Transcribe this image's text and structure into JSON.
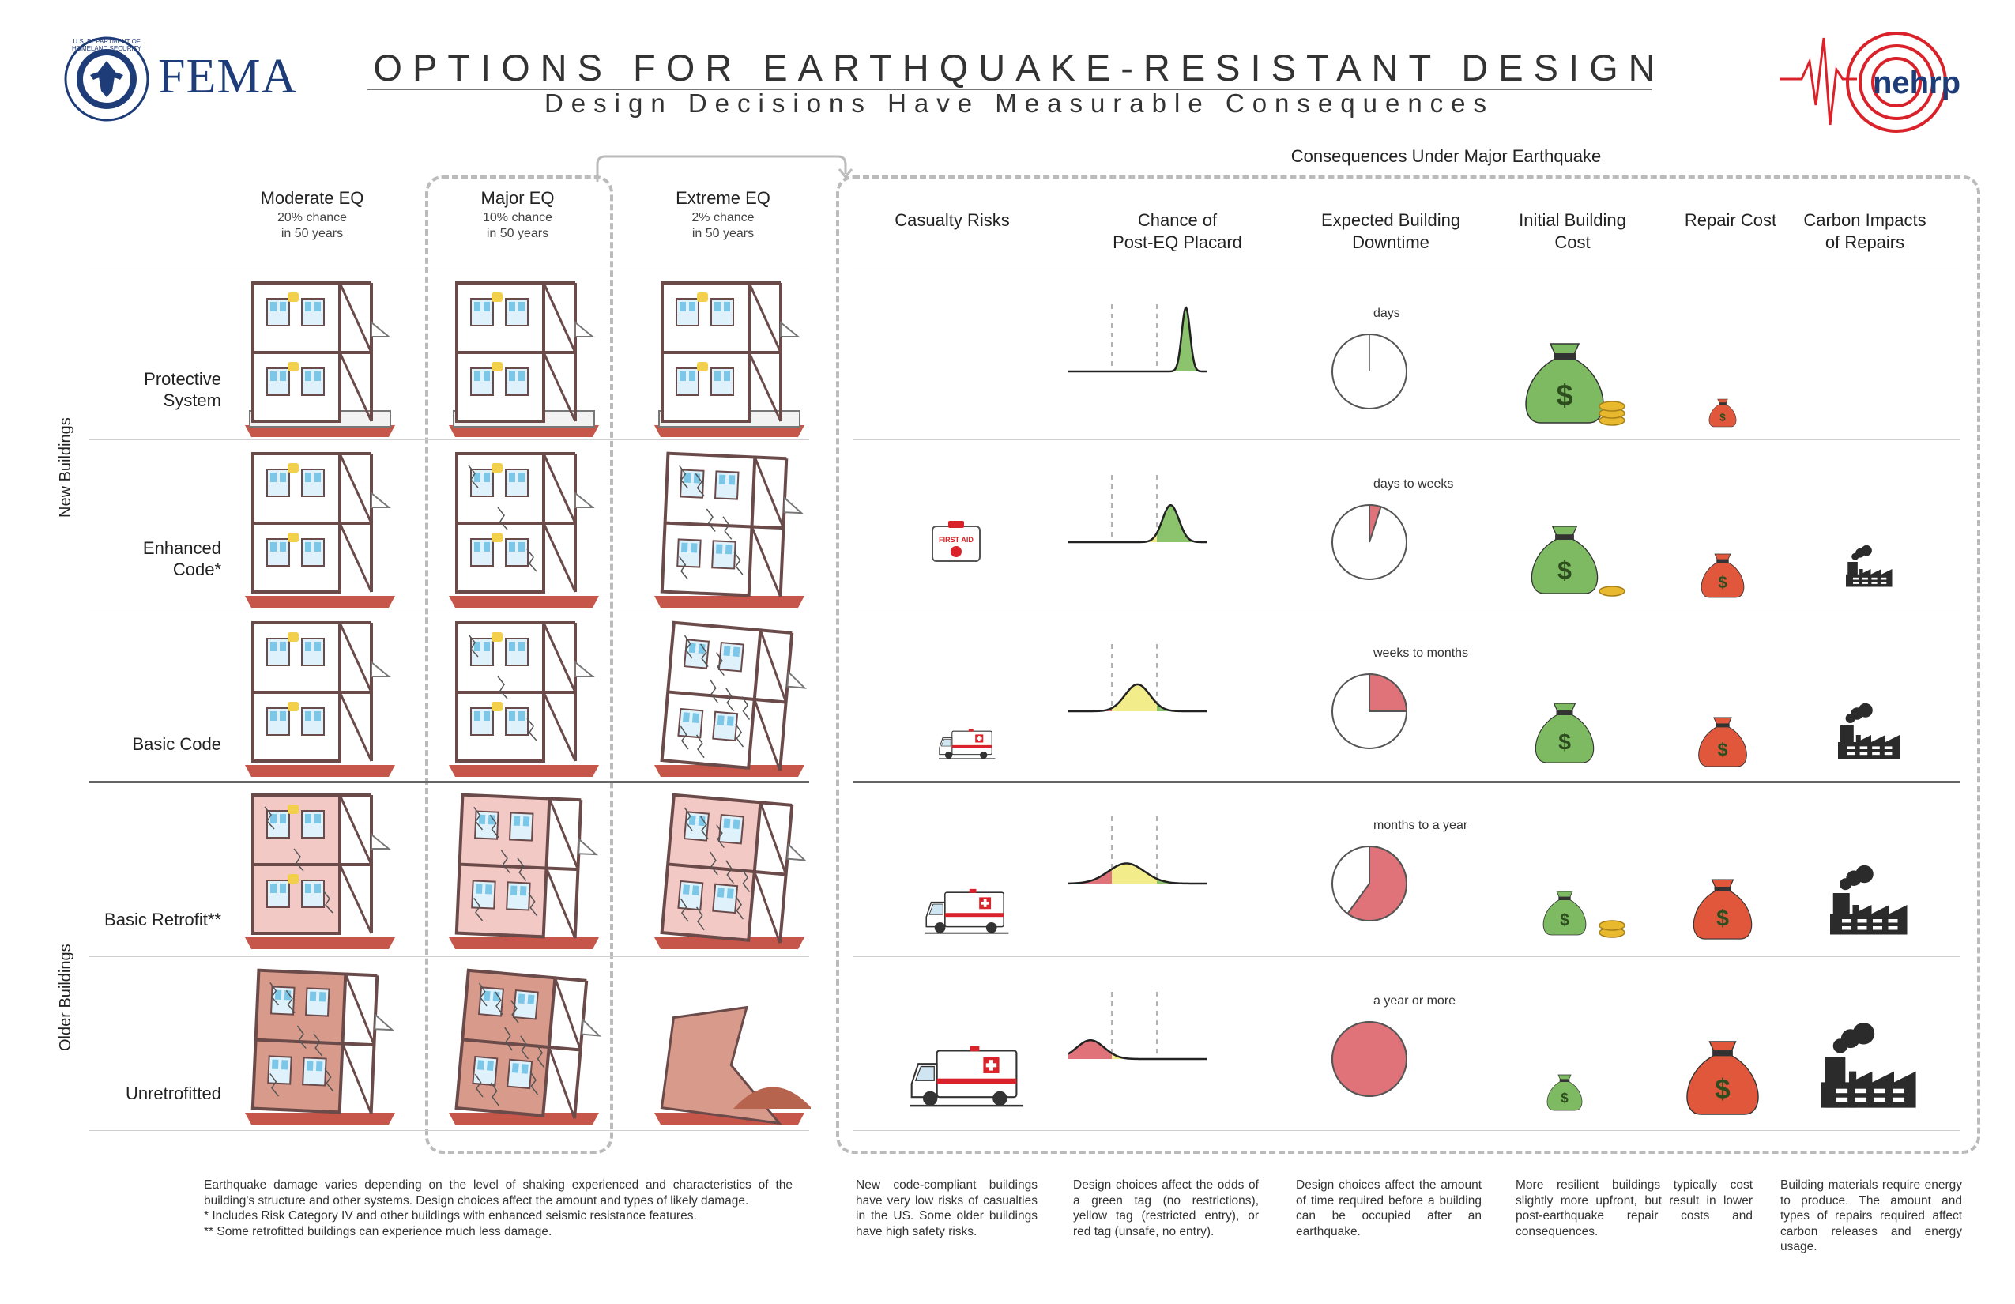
{
  "header": {
    "title": "OPTIONS FOR EARTHQUAKE-RESISTANT DESIGN",
    "subtitle": "Design Decisions Have Measurable Consequences",
    "fema_logo": "FEMA",
    "seal_ring_text": "U.S. DEPARTMENT OF HOMELAND SECURITY",
    "nehrp_logo": "nehrp"
  },
  "eq_columns": [
    {
      "title": "Moderate EQ",
      "sub1": "20% chance",
      "sub2": "in 50 years"
    },
    {
      "title": "Major EQ",
      "sub1": "10% chance",
      "sub2": "in 50 years"
    },
    {
      "title": "Extreme EQ",
      "sub1": "2% chance",
      "sub2": "in 50 years"
    }
  ],
  "consequences_heading": "Consequences Under Major Earthquake",
  "consequence_columns": [
    {
      "l1": "Casualty Risks",
      "l2": ""
    },
    {
      "l1": "Chance of",
      "l2": "Post-EQ Placard"
    },
    {
      "l1": "Expected Building",
      "l2": "Downtime"
    },
    {
      "l1": "Initial Building",
      "l2": "Cost"
    },
    {
      "l1": "Repair Cost",
      "l2": ""
    },
    {
      "l1": "Carbon Impacts",
      "l2": "of Repairs"
    }
  ],
  "groups": {
    "new": "New Buildings",
    "older": "Older Buildings"
  },
  "rows": [
    {
      "l1": "Protective",
      "l2": "System",
      "downtime_label": "days",
      "downtime_fraction": 0.0,
      "placard_mean": 0.85,
      "placard_sd": 0.03,
      "placard_height": 0.95,
      "casualty": "none",
      "initial_cost": "xlarge",
      "coins": 3,
      "repair": "xsmall",
      "carbon": "none"
    },
    {
      "l1": "Enhanced",
      "l2": "Code*",
      "downtime_label": "days to weeks",
      "downtime_fraction": 0.05,
      "placard_mean": 0.74,
      "placard_sd": 0.06,
      "placard_height": 0.55,
      "casualty": "firstaid",
      "initial_cost": "large",
      "coins": 1,
      "repair": "small",
      "carbon": "small"
    },
    {
      "l1": "Basic Code",
      "l2": "",
      "downtime_label": "weeks to months",
      "downtime_fraction": 0.25,
      "placard_mean": 0.5,
      "placard_sd": 0.09,
      "placard_height": 0.4,
      "casualty": "ambulance-s",
      "initial_cost": "medium",
      "coins": 0,
      "repair": "medium",
      "carbon": "medium"
    },
    {
      "l1": "Basic Retrofit**",
      "l2": "",
      "downtime_label": "months to a year",
      "downtime_fraction": 0.6,
      "placard_mean": 0.42,
      "placard_sd": 0.13,
      "placard_height": 0.3,
      "casualty": "ambulance-m",
      "initial_cost": "small",
      "coins": 2,
      "repair": "large",
      "carbon": "large"
    },
    {
      "l1": "Unretrofitted",
      "l2": "",
      "downtime_label": "a year or more",
      "downtime_fraction": 0.999,
      "placard_mean": 0.16,
      "placard_sd": 0.1,
      "placard_height": 0.28,
      "casualty": "ambulance-l",
      "initial_cost": "xsmall",
      "coins": 0,
      "repair": "xlarge",
      "carbon": "xlarge"
    }
  ],
  "firstaid_text": "FIRST AID",
  "footnotes": {
    "main": "Earthquake damage varies depending on the level of shaking experienced and characteristics of the building's structure and other systems. Design choices affect the amount and types of likely damage.",
    "star1": "* Includes Risk Category IV and other buildings with enhanced seismic resistance features.",
    "star2": "** Some retrofitted buildings can experience much less damage.",
    "casualty": "New code-compliant buildings have very low risks of casualties in the US. Some older buildings have high safety risks.",
    "placard": "Design choices affect the odds of a green tag (no restrictions), yellow tag (restricted entry), or red tag (unsafe, no entry).",
    "downtime": "Design choices affect the amount of time required before a building can be occupied after an earthquake.",
    "cost": "More resilient buildings typically cost slightly more upfront, but result in lower post-earthquake repair costs and consequences.",
    "carbon": "Building materials require energy to produce. The amount and types of repairs required affect carbon releases and energy usage."
  },
  "colors": {
    "green_tag": "#8cc46e",
    "yellow_tag": "#f3ec8a",
    "red_tag": "#e0737a",
    "money_green": "#7dba62",
    "money_red": "#e0573c",
    "coin": "#e8b92e",
    "frame": "#6b4a4a",
    "pink_wall": "#f3c9c5",
    "brick": "#d89a8a",
    "dark": "#2b2b2b"
  }
}
